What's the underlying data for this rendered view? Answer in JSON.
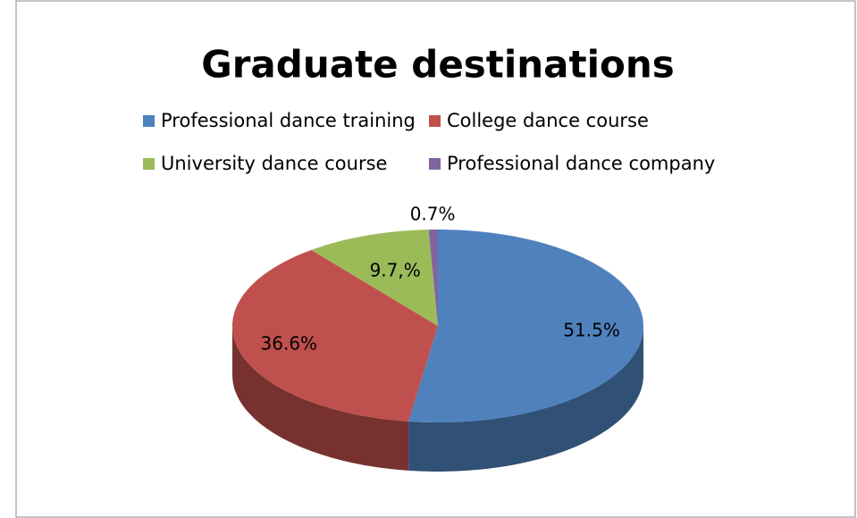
{
  "chart_data": {
    "type": "pie",
    "title": "Graduate destinations",
    "categories": [
      "Professional dance training",
      "College dance course",
      "University dance course",
      "Professional dance company"
    ],
    "values": [
      51.5,
      36.6,
      9.7,
      0.7
    ],
    "value_labels": [
      "51.5%",
      "36.6%",
      "9.7,%",
      "0.7%"
    ],
    "colors": [
      "#4f81bd",
      "#c0504d",
      "#9bbb59",
      "#8064a2"
    ],
    "legend": "top"
  }
}
